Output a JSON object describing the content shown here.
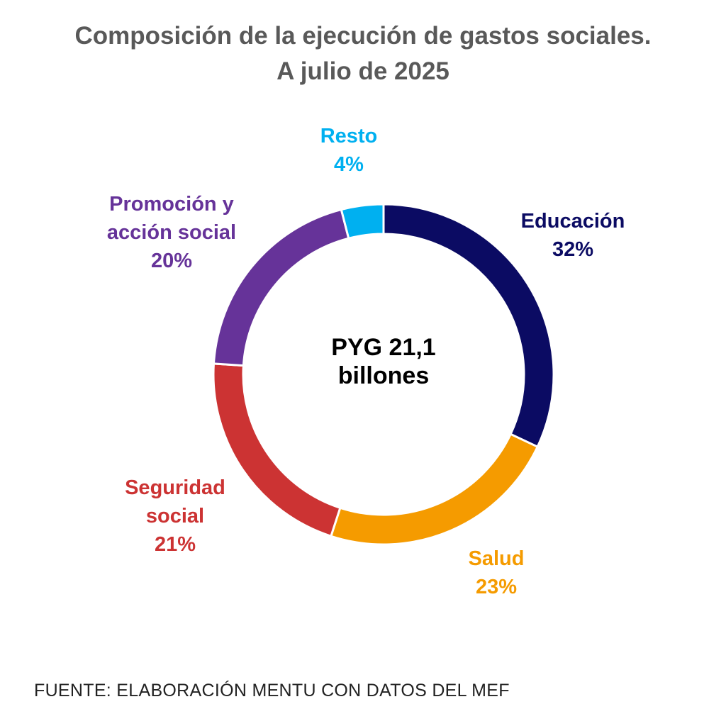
{
  "chart_data": {
    "type": "donut",
    "title": "Composición de la ejecución de gastos sociales. A julio de 2025",
    "center_label": "PYG 21,1 billones",
    "categories": [
      "Educación",
      "Salud",
      "Seguridad social",
      "Promoción y acción social",
      "Resto"
    ],
    "values": [
      32,
      23,
      21,
      20,
      4
    ],
    "value_labels": [
      "32%",
      "23%",
      "21%",
      "20%",
      "4%"
    ],
    "colors": [
      "#0b0b63",
      "#f59b00",
      "#cc3333",
      "#663399",
      "#00b0f0"
    ],
    "source": "FUENTE: ELABORACIÓN MENTU CON DATOS DEL MEF"
  }
}
